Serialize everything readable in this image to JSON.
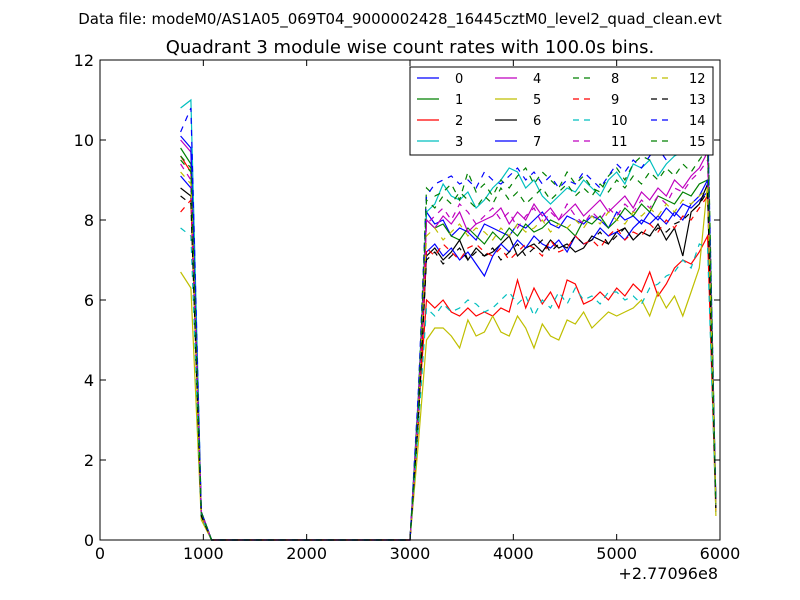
{
  "chart_data": {
    "type": "line",
    "suptitle": "Data file: modeM0/AS1A05_069T04_9000002428_16445cztM0_level2_quad_clean.evt",
    "title": "Quadrant 3 module wise count rates with 100.0s bins.",
    "xlabel": "",
    "ylabel": "",
    "x_offset_label": "+2.77096e8",
    "xlim": [
      0,
      6000
    ],
    "ylim": [
      0,
      12
    ],
    "xticks": [
      0,
      1000,
      2000,
      3000,
      4000,
      5000,
      6000
    ],
    "yticks": [
      0,
      2,
      4,
      6,
      8,
      10,
      12
    ],
    "grid": false,
    "legend": {
      "placement": "top-right",
      "columns": 4
    },
    "x": [
      780,
      880,
      980,
      1080,
      1180,
      2900,
      3000,
      3080,
      3160,
      3240,
      3320,
      3400,
      3480,
      3560,
      3640,
      3720,
      3800,
      3880,
      3960,
      4040,
      4120,
      4200,
      4280,
      4360,
      4440,
      4520,
      4600,
      4680,
      4760,
      4840,
      4920,
      5000,
      5080,
      5160,
      5240,
      5320,
      5400,
      5480,
      5560,
      5640,
      5720,
      5800,
      5880,
      5960
    ],
    "series": [
      {
        "name": "0",
        "color": "#0000ff",
        "dash": "solid",
        "values": [
          9.1,
          8.8,
          0.7,
          0,
          0,
          0,
          0,
          3.0,
          8.2,
          7.9,
          8.0,
          7.6,
          7.8,
          7.7,
          7.5,
          7.9,
          7.8,
          7.7,
          7.6,
          7.9,
          7.8,
          8.0,
          8.2,
          7.9,
          7.8,
          8.1,
          8.0,
          7.9,
          8.1,
          8.0,
          7.8,
          8.2,
          8.0,
          8.1,
          7.9,
          8.2,
          8.0,
          8.3,
          8.1,
          8.4,
          8.3,
          8.5,
          8.7,
          0.8
        ]
      },
      {
        "name": "1",
        "color": "#008000",
        "dash": "solid",
        "values": [
          9.8,
          9.4,
          0.7,
          0,
          0,
          0,
          0,
          3.4,
          8.0,
          7.8,
          7.9,
          7.6,
          7.5,
          7.8,
          7.6,
          7.4,
          7.7,
          7.5,
          7.8,
          7.6,
          7.9,
          7.7,
          7.8,
          8.0,
          7.9,
          7.8,
          7.6,
          8.0,
          7.9,
          8.1,
          7.8,
          8.0,
          8.3,
          8.1,
          8.4,
          8.2,
          8.6,
          8.5,
          8.4,
          8.7,
          8.6,
          8.9,
          9.0,
          0.9
        ]
      },
      {
        "name": "2",
        "color": "#ff0000",
        "dash": "solid",
        "values": [
          9.6,
          9.2,
          0.6,
          0,
          0,
          0,
          0,
          3.2,
          6.0,
          5.8,
          6.0,
          5.7,
          5.6,
          5.8,
          5.6,
          5.7,
          5.6,
          5.8,
          5.7,
          6.5,
          5.8,
          6.3,
          5.9,
          6.2,
          5.8,
          6.5,
          6.4,
          5.9,
          6.0,
          6.2,
          6.0,
          6.3,
          6.1,
          6.4,
          6.2,
          6.7,
          6.1,
          6.4,
          6.8,
          7.0,
          6.9,
          7.2,
          7.6,
          0.7
        ]
      },
      {
        "name": "3",
        "color": "#00bfbf",
        "dash": "solid",
        "values": [
          10.8,
          11.0,
          0.7,
          0,
          0,
          0,
          0,
          3.6,
          8.2,
          8.4,
          8.9,
          8.6,
          8.5,
          8.7,
          8.3,
          8.5,
          8.8,
          9.0,
          9.3,
          9.2,
          8.8,
          9.0,
          8.6,
          8.4,
          8.6,
          8.8,
          8.7,
          9.0,
          8.8,
          8.6,
          9.0,
          9.2,
          8.9,
          9.4,
          9.3,
          9.5,
          9.1,
          9.4,
          9.6,
          9.7,
          10.0,
          9.8,
          10.3,
          0.9
        ]
      },
      {
        "name": "4",
        "color": "#bf00bf",
        "dash": "solid",
        "values": [
          10.0,
          9.7,
          0.7,
          0,
          0,
          0,
          0,
          3.5,
          8.0,
          7.8,
          8.1,
          7.9,
          8.2,
          7.7,
          7.9,
          8.0,
          8.1,
          8.3,
          7.9,
          8.2,
          8.0,
          8.4,
          8.1,
          8.3,
          8.0,
          8.2,
          8.4,
          8.1,
          8.3,
          8.5,
          8.2,
          8.4,
          8.6,
          8.3,
          8.7,
          8.5,
          8.8,
          8.6,
          9.0,
          8.8,
          9.1,
          9.3,
          9.7,
          0.9
        ]
      },
      {
        "name": "5",
        "color": "#bfbf00",
        "dash": "solid",
        "values": [
          6.7,
          6.3,
          0.5,
          0,
          0,
          0,
          0,
          2.4,
          5.0,
          5.3,
          5.3,
          5.1,
          4.8,
          5.5,
          5.1,
          5.2,
          5.6,
          5.2,
          5.1,
          5.6,
          5.3,
          4.8,
          5.4,
          5.1,
          5.0,
          5.5,
          5.4,
          5.7,
          5.3,
          5.5,
          5.7,
          5.6,
          5.7,
          5.8,
          6.0,
          5.6,
          6.2,
          5.8,
          6.1,
          5.6,
          6.2,
          6.8,
          8.9,
          0.6
        ]
      },
      {
        "name": "6",
        "color": "#000000",
        "dash": "solid",
        "values": [
          8.8,
          8.6,
          0.6,
          0,
          0,
          0,
          0,
          3.1,
          7.1,
          7.3,
          7.0,
          7.2,
          7.5,
          7.0,
          7.3,
          7.1,
          7.2,
          7.4,
          7.6,
          7.1,
          7.3,
          7.4,
          7.2,
          7.5,
          7.3,
          7.4,
          7.2,
          7.3,
          7.6,
          7.5,
          7.4,
          7.7,
          7.8,
          7.5,
          7.7,
          7.6,
          7.9,
          7.5,
          7.8,
          7.1,
          8.2,
          8.4,
          8.9,
          0.8
        ]
      },
      {
        "name": "7",
        "color": "#0000ff",
        "dash": "solid",
        "values": [
          10.1,
          9.8,
          0.7,
          0,
          0,
          0,
          0,
          3.3,
          7.2,
          7.4,
          7.1,
          7.3,
          7.0,
          7.2,
          6.9,
          6.6,
          7.1,
          7.4,
          7.2,
          7.5,
          7.3,
          7.6,
          7.4,
          7.3,
          7.5,
          7.2,
          7.6,
          7.4,
          7.5,
          7.8,
          7.6,
          7.7,
          7.5,
          7.8,
          8.0,
          7.9,
          8.1,
          7.9,
          8.2,
          8.0,
          8.4,
          8.6,
          9.0,
          0.9
        ]
      },
      {
        "name": "8",
        "color": "#008000",
        "dash": "dash",
        "values": [
          9.5,
          9.2,
          0.7,
          0,
          0,
          0,
          0,
          3.5,
          8.8,
          8.6,
          8.7,
          8.9,
          8.5,
          9.2,
          8.7,
          8.9,
          8.6,
          9.0,
          8.8,
          9.1,
          9.3,
          8.9,
          9.2,
          9.0,
          8.8,
          9.2,
          8.9,
          9.1,
          8.8,
          8.7,
          9.1,
          9.3,
          9.0,
          9.4,
          9.6,
          9.5,
          9.8,
          9.6,
          10.0,
          9.8,
          10.2,
          10.4,
          10.7,
          0.9
        ]
      },
      {
        "name": "9",
        "color": "#ff0000",
        "dash": "dash",
        "values": [
          8.2,
          8.5,
          0.6,
          0,
          0,
          0,
          0,
          2.9,
          7.3,
          7.1,
          7.4,
          7.2,
          7.0,
          7.3,
          7.4,
          7.2,
          7.1,
          7.3,
          7.0,
          7.2,
          7.4,
          7.3,
          7.1,
          7.5,
          7.2,
          7.3,
          7.6,
          7.4,
          7.5,
          7.3,
          7.6,
          7.8,
          7.5,
          7.7,
          7.6,
          7.9,
          7.7,
          8.0,
          7.8,
          8.1,
          8.0,
          8.3,
          8.6,
          0.8
        ]
      },
      {
        "name": "10",
        "color": "#00bfbf",
        "dash": "dash",
        "values": [
          7.8,
          7.6,
          0.6,
          0,
          0,
          0,
          0,
          2.8,
          5.8,
          5.6,
          5.9,
          5.7,
          5.8,
          6.0,
          5.9,
          5.7,
          5.8,
          6.0,
          6.2,
          5.9,
          6.1,
          5.6,
          6.0,
          5.8,
          6.2,
          5.9,
          6.3,
          6.0,
          6.1,
          5.9,
          6.2,
          6.2,
          6.0,
          6.1,
          5.9,
          6.3,
          6.4,
          6.6,
          6.7,
          7.0,
          6.8,
          7.4,
          7.3,
          0.7
        ]
      },
      {
        "name": "11",
        "color": "#bf00bf",
        "dash": "dash",
        "values": [
          9.4,
          9.0,
          0.7,
          0,
          0,
          0,
          0,
          3.3,
          7.9,
          8.1,
          8.3,
          8.0,
          8.4,
          8.2,
          7.9,
          8.1,
          8.3,
          8.0,
          8.2,
          7.8,
          8.1,
          8.3,
          7.9,
          8.2,
          8.0,
          8.4,
          8.1,
          7.9,
          8.2,
          8.0,
          8.3,
          8.1,
          8.4,
          8.2,
          8.5,
          8.3,
          8.6,
          8.4,
          8.8,
          8.7,
          9.0,
          9.2,
          9.5,
          0.9
        ]
      },
      {
        "name": "12",
        "color": "#bfbf00",
        "dash": "dash",
        "values": [
          9.2,
          8.9,
          0.6,
          0,
          0,
          0,
          0,
          3.2,
          7.6,
          7.8,
          7.5,
          7.7,
          7.9,
          7.6,
          7.8,
          7.7,
          7.5,
          7.8,
          7.6,
          7.9,
          7.7,
          7.8,
          8.0,
          7.7,
          7.9,
          7.8,
          8.0,
          7.8,
          8.1,
          7.9,
          8.2,
          8.0,
          7.9,
          8.2,
          8.1,
          8.3,
          8.1,
          8.4,
          8.2,
          8.5,
          8.4,
          8.6,
          8.8,
          0.8
        ]
      },
      {
        "name": "13",
        "color": "#000000",
        "dash": "dash",
        "values": [
          8.6,
          8.4,
          0.6,
          0,
          0,
          0,
          0,
          3.0,
          7.0,
          7.2,
          6.9,
          7.1,
          7.3,
          7.0,
          7.2,
          7.1,
          7.3,
          7.0,
          7.2,
          7.4,
          7.1,
          7.3,
          7.5,
          7.2,
          7.4,
          7.3,
          7.6,
          7.4,
          7.5,
          7.7,
          7.4,
          7.6,
          7.8,
          7.5,
          7.7,
          7.6,
          7.8,
          7.7,
          7.9,
          8.0,
          8.2,
          8.4,
          8.7,
          0.8
        ]
      },
      {
        "name": "14",
        "color": "#0000ff",
        "dash": "dash",
        "values": [
          10.2,
          10.8,
          0.7,
          0,
          0,
          0,
          0,
          3.7,
          8.6,
          8.9,
          9.0,
          9.1,
          8.9,
          9.0,
          8.8,
          9.2,
          9.0,
          8.9,
          9.1,
          9.3,
          9.0,
          9.2,
          8.9,
          9.1,
          8.8,
          9.0,
          8.9,
          9.2,
          9.0,
          8.8,
          9.1,
          9.4,
          9.2,
          9.5,
          9.3,
          9.6,
          9.8,
          9.5,
          9.9,
          10.0,
          10.2,
          10.3,
          10.6,
          0.9
        ]
      },
      {
        "name": "15",
        "color": "#008000",
        "dash": "dash",
        "values": [
          9.6,
          9.3,
          0.7,
          0,
          0,
          0,
          0,
          3.3,
          8.5,
          8.3,
          8.6,
          8.4,
          8.7,
          8.5,
          8.3,
          8.6,
          8.4,
          8.8,
          8.5,
          8.7,
          8.4,
          8.6,
          8.8,
          8.5,
          8.7,
          8.9,
          8.6,
          8.8,
          8.6,
          8.9,
          8.7,
          9.0,
          8.8,
          9.1,
          8.9,
          9.2,
          9.0,
          9.3,
          9.1,
          9.4,
          9.2,
          9.5,
          9.8,
          0.9
        ]
      }
    ]
  }
}
